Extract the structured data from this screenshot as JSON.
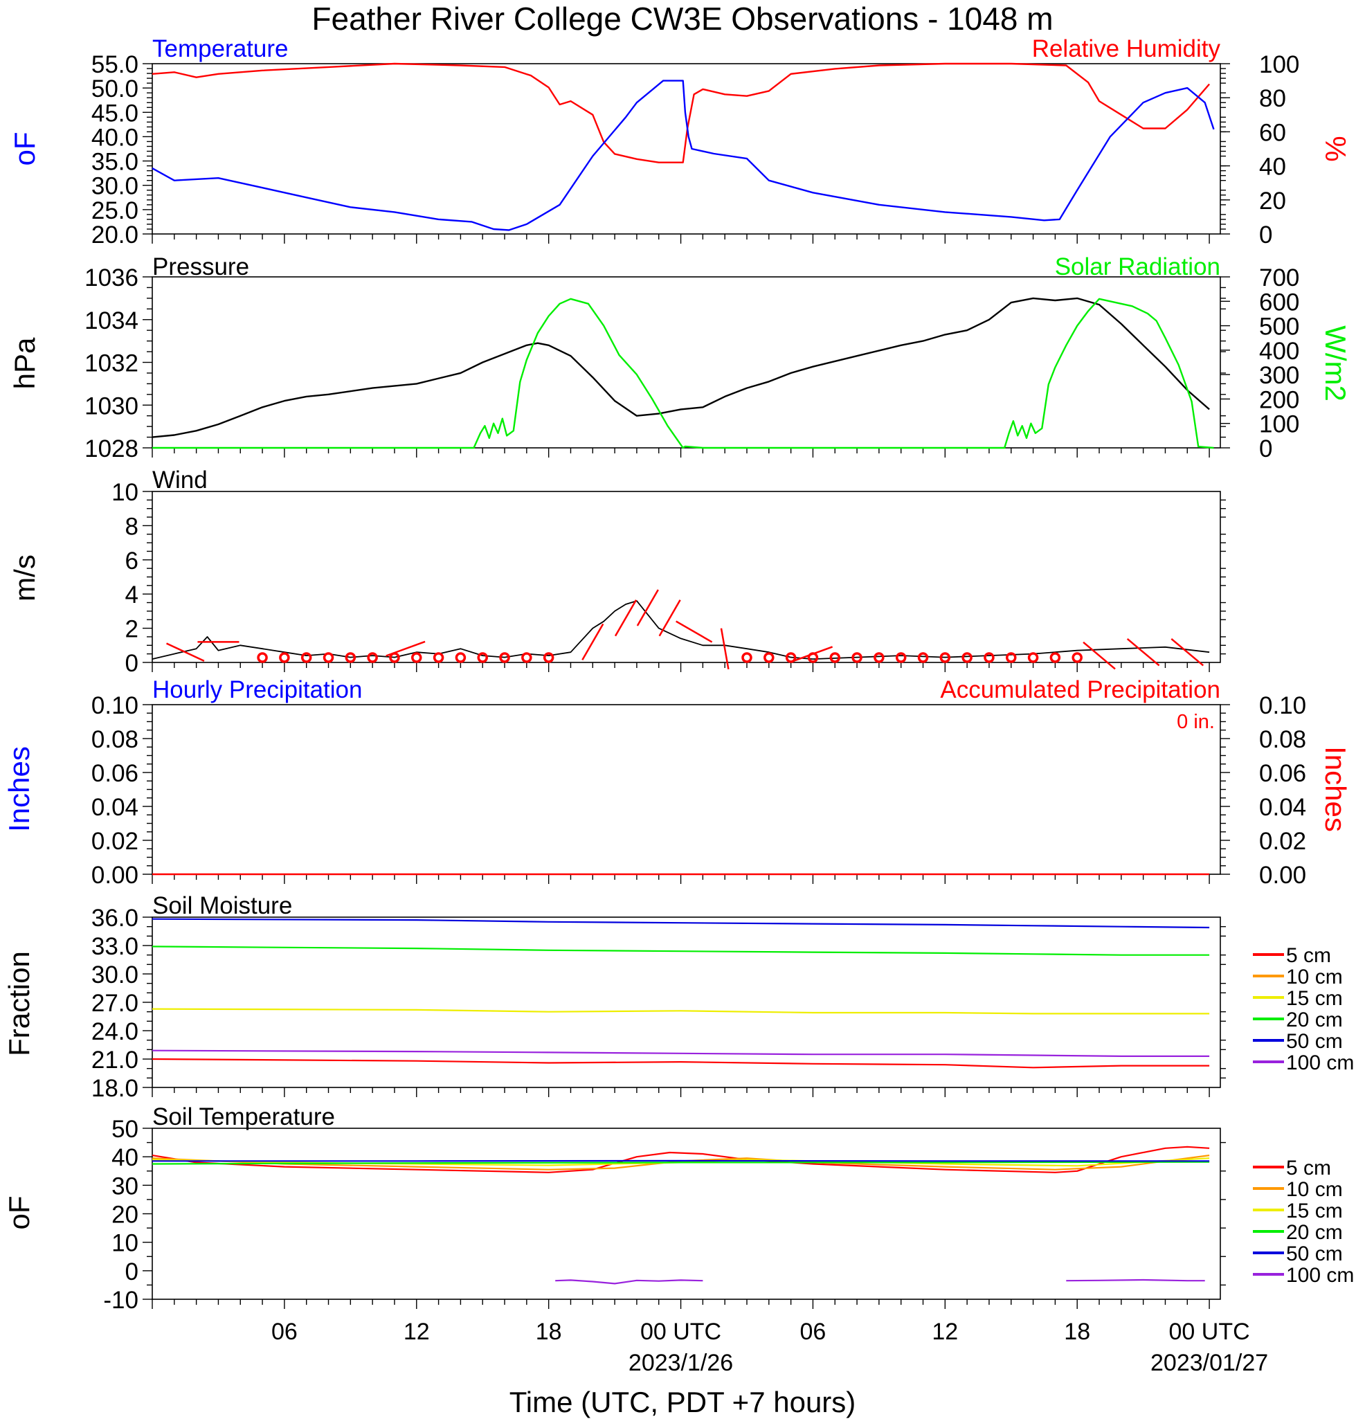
{
  "page": {
    "title": "Feather River College CW3E Observations - 1048 m",
    "x_axis_title": "Time (UTC, PDT +7 hours)",
    "x_ticks": [
      "06",
      "12",
      "18",
      "00 UTC",
      "06",
      "12",
      "18",
      "00 UTC"
    ],
    "date_labels": [
      "2023/1/26",
      "2023/01/27"
    ]
  },
  "colors": {
    "temperature": "#0000ff",
    "humidity": "#ff0000",
    "pressure": "#000000",
    "solar": "#00ee00",
    "wind_barb": "#ff0000",
    "cm5": "#ff0000",
    "cm10": "#ff9900",
    "cm15": "#eeee00",
    "cm20": "#00ee00",
    "cm50": "#0000dd",
    "cm100": "#9922dd"
  },
  "chart_data": [
    {
      "panel": "temp_rh",
      "type": "line",
      "left_label": "Temperature",
      "right_label": "Relative Humidity",
      "left_unit": "oF",
      "right_unit": "%",
      "left_ylim": [
        20,
        55
      ],
      "right_ylim": [
        0,
        100
      ],
      "left_ticks": [
        "55.0",
        "50.0",
        "45.0",
        "40.0",
        "35.0",
        "30.0",
        "25.0",
        "20.0"
      ],
      "right_ticks": [
        "100",
        "80",
        "60",
        "40",
        "20",
        "0"
      ],
      "series": [
        {
          "name": "Temperature",
          "axis": "left",
          "color_key": "temperature",
          "x": [
            0,
            1,
            3,
            5,
            7,
            9,
            11,
            13,
            14.5,
            15.5,
            16.2,
            17,
            18.5,
            20,
            21.5,
            22,
            23.2,
            24.1,
            24.2,
            24.35,
            24.5,
            25.5,
            27,
            28,
            30,
            33,
            36,
            39,
            40.5,
            41.2,
            42,
            43.5,
            45,
            46,
            47,
            47.8,
            48.2
          ],
          "y": [
            33.5,
            31,
            31.5,
            29.5,
            27.5,
            25.5,
            24.5,
            23,
            22.5,
            21,
            20.8,
            22,
            26,
            36,
            44,
            47,
            51.5,
            51.5,
            45,
            40,
            37.5,
            36.5,
            35.5,
            31,
            28.5,
            26,
            24.5,
            23.5,
            22.8,
            23,
            29,
            40,
            47,
            49,
            50,
            47,
            41.5
          ]
        },
        {
          "name": "Relative Humidity",
          "axis": "right",
          "color_key": "humidity",
          "x": [
            0,
            1,
            2,
            3,
            5,
            8,
            11,
            14,
            16,
            17.2,
            18,
            18.5,
            19,
            20,
            20.5,
            21,
            22,
            23,
            24.1,
            24.3,
            24.6,
            25,
            26,
            27,
            28,
            29,
            31,
            33,
            36,
            39,
            41.5,
            42.5,
            43,
            44,
            45,
            46,
            47,
            48
          ],
          "y": [
            94,
            95,
            92,
            94,
            96,
            98,
            100,
            99,
            98,
            93,
            86,
            76,
            78,
            70,
            54,
            47,
            44,
            42,
            42,
            62,
            82,
            85,
            82,
            81,
            84,
            94,
            97,
            99,
            100,
            100,
            99,
            89,
            78,
            70,
            62,
            62,
            73,
            88
          ]
        },
        {
          "name": "Pressure",
          "axis": "left2",
          "color_key": "pressure",
          "x": [
            0,
            1,
            2,
            3,
            4,
            5,
            6,
            7,
            8,
            10,
            12,
            14,
            15,
            16,
            17,
            17.5,
            18,
            19,
            20,
            21,
            22,
            23,
            24,
            25,
            26,
            27,
            28,
            29,
            30,
            32,
            34,
            35,
            36,
            37,
            38,
            39,
            40,
            41,
            42,
            43,
            44,
            45,
            46,
            47,
            48
          ],
          "y": [
            1028.5,
            1028.6,
            1028.8,
            1029.1,
            1029.5,
            1029.9,
            1030.2,
            1030.4,
            1030.5,
            1030.8,
            1031.0,
            1031.5,
            1032.0,
            1032.4,
            1032.8,
            1032.9,
            1032.8,
            1032.3,
            1031.3,
            1030.2,
            1029.5,
            1029.6,
            1029.8,
            1029.9,
            1030.4,
            1030.8,
            1031.1,
            1031.5,
            1031.8,
            1032.3,
            1032.8,
            1033.0,
            1033.3,
            1033.5,
            1034.0,
            1034.8,
            1035.0,
            1034.9,
            1035.0,
            1034.7,
            1033.8,
            1032.8,
            1031.8,
            1030.7,
            1029.8
          ]
        },
        {
          "name": "Solar Radiation",
          "axis": "right2",
          "color_key": "solar",
          "x": [
            0,
            14.6,
            14.9,
            15.1,
            15.3,
            15.5,
            15.7,
            15.9,
            16.1,
            16.4,
            16.7,
            17,
            17.5,
            18,
            18.5,
            19,
            19.8,
            20.5,
            21.2,
            22,
            22.7,
            23.4,
            24.1,
            24.2,
            25,
            38.7,
            38.9,
            39.1,
            39.3,
            39.5,
            39.7,
            39.9,
            40.1,
            40.4,
            40.7,
            41,
            41.5,
            42,
            42.5,
            43,
            43.5,
            44.5,
            45.2,
            45.6,
            46,
            46.6,
            47.2,
            47.5,
            48.2
          ],
          "y": [
            0,
            0,
            60,
            90,
            40,
            100,
            60,
            120,
            50,
            70,
            270,
            360,
            470,
            540,
            590,
            610,
            590,
            500,
            380,
            300,
            200,
            90,
            0,
            6,
            0,
            0,
            60,
            110,
            50,
            90,
            40,
            100,
            60,
            80,
            260,
            330,
            420,
            500,
            560,
            610,
            600,
            580,
            550,
            520,
            450,
            340,
            190,
            5,
            0
          ]
        }
      ]
    },
    {
      "panel": "pressure_solar",
      "type": "line",
      "left_label": "Pressure",
      "right_label": "Solar Radiation",
      "left_unit": "hPa",
      "right_unit": "W/m2",
      "left_ylim": [
        1028,
        1036
      ],
      "right_ylim": [
        0,
        700
      ],
      "left_ticks": [
        "1036",
        "1034",
        "1032",
        "1030",
        "1028"
      ],
      "right_ticks": [
        "700",
        "600",
        "500",
        "400",
        "300",
        "200",
        "100",
        "0"
      ]
    },
    {
      "panel": "wind",
      "type": "line",
      "left_label": "Wind",
      "left_unit": "m/s",
      "ylim": [
        0,
        10
      ],
      "left_ticks": [
        "10",
        "8",
        "6",
        "4",
        "2",
        "0"
      ],
      "x": [
        0,
        1,
        2,
        2.5,
        3,
        4,
        5,
        6,
        7,
        8,
        9,
        10,
        11,
        12,
        13,
        14,
        15,
        16,
        17,
        18,
        19,
        20,
        20.5,
        21,
        21.5,
        22,
        22.5,
        23,
        24,
        25,
        26,
        27,
        28,
        29,
        30,
        32,
        34,
        36,
        38,
        40,
        42,
        44,
        46,
        48
      ],
      "y": [
        0.2,
        0.5,
        0.8,
        1.5,
        0.7,
        1.0,
        0.8,
        0.6,
        0.4,
        0.5,
        0.3,
        0.4,
        0.3,
        0.6,
        0.5,
        0.8,
        0.4,
        0.3,
        0.5,
        0.4,
        0.6,
        2.0,
        2.4,
        3.0,
        3.4,
        3.6,
        2.8,
        2.0,
        1.4,
        1.0,
        1.0,
        0.8,
        0.6,
        0.3,
        0.2,
        0.3,
        0.4,
        0.3,
        0.4,
        0.5,
        0.7,
        0.8,
        0.9,
        0.6
      ],
      "calm_x": [
        5,
        6,
        7,
        8,
        9,
        10,
        11,
        12,
        13,
        14,
        15,
        16,
        17,
        18,
        27,
        28,
        29,
        30,
        31,
        32,
        33,
        34,
        35,
        36,
        37,
        38,
        39,
        40,
        41,
        42
      ]
    },
    {
      "panel": "precip",
      "type": "line",
      "left_label": "Hourly Precipitation",
      "right_label": "Accumulated Precipitation",
      "left_unit": "Inches",
      "right_unit": "Inches",
      "total_label": "0 in.",
      "ylim": [
        0,
        0.1
      ],
      "left_ticks": [
        "0.10",
        "0.08",
        "0.06",
        "0.04",
        "0.02",
        "0.00"
      ],
      "right_ticks": [
        "0.10",
        "0.08",
        "0.06",
        "0.04",
        "0.02",
        "0.00"
      ],
      "series": [
        {
          "x": [
            0,
            48
          ],
          "y": [
            0,
            0
          ]
        }
      ]
    },
    {
      "panel": "soil_moisture",
      "type": "line",
      "left_label": "Soil Moisture",
      "left_unit": "Fraction",
      "ylim": [
        18,
        36
      ],
      "left_ticks": [
        "36.0",
        "33.0",
        "30.0",
        "27.0",
        "24.0",
        "21.0",
        "18.0"
      ],
      "legend": [
        "5 cm",
        "10 cm",
        "15 cm",
        "20 cm",
        "50 cm",
        "100 cm"
      ],
      "series": [
        {
          "name": "5 cm",
          "color_key": "cm5",
          "x": [
            0,
            12,
            18,
            24,
            30,
            36,
            40,
            44,
            48
          ],
          "y": [
            21.0,
            20.8,
            20.6,
            20.7,
            20.5,
            20.4,
            20.1,
            20.3,
            20.3
          ]
        },
        {
          "name": "15 cm",
          "color_key": "cm15",
          "x": [
            0,
            12,
            18,
            24,
            30,
            36,
            40,
            44,
            48
          ],
          "y": [
            26.3,
            26.2,
            26.0,
            26.1,
            25.9,
            25.9,
            25.8,
            25.8,
            25.8
          ]
        },
        {
          "name": "20 cm",
          "color_key": "cm20",
          "x": [
            0,
            12,
            18,
            24,
            30,
            36,
            40,
            44,
            48
          ],
          "y": [
            32.9,
            32.7,
            32.5,
            32.4,
            32.3,
            32.2,
            32.1,
            32.0,
            32.0
          ]
        },
        {
          "name": "50 cm",
          "color_key": "cm50",
          "x": [
            0,
            12,
            18,
            24,
            30,
            36,
            40,
            44,
            48
          ],
          "y": [
            35.8,
            35.7,
            35.5,
            35.4,
            35.3,
            35.2,
            35.1,
            35.0,
            34.9
          ]
        },
        {
          "name": "100 cm",
          "color_key": "cm100",
          "x": [
            0,
            12,
            18,
            24,
            30,
            36,
            40,
            44,
            48
          ],
          "y": [
            21.9,
            21.8,
            21.7,
            21.6,
            21.5,
            21.5,
            21.4,
            21.3,
            21.3
          ]
        }
      ]
    },
    {
      "panel": "soil_temp",
      "type": "line",
      "left_label": "Soil Temperature",
      "left_unit": "oF",
      "ylim": [
        -10,
        50
      ],
      "left_ticks": [
        "50",
        "40",
        "30",
        "20",
        "10",
        "0",
        "-10"
      ],
      "legend": [
        "5 cm",
        "10 cm",
        "15 cm",
        "20 cm",
        "50 cm",
        "100 cm"
      ],
      "series": [
        {
          "name": "5 cm",
          "color_key": "cm5",
          "x": [
            0,
            2,
            6,
            12,
            18,
            20,
            22,
            23.5,
            25,
            27,
            30,
            36,
            41,
            42,
            44,
            46,
            47,
            48
          ],
          "y": [
            40.5,
            38,
            36.5,
            35.5,
            34.5,
            35.5,
            40,
            41.5,
            41,
            39,
            37.5,
            35.5,
            34.5,
            35,
            40,
            43,
            43.5,
            43
          ]
        },
        {
          "name": "10 cm",
          "color_key": "cm10",
          "x": [
            0,
            6,
            12,
            18,
            21,
            24,
            27,
            30,
            36,
            41,
            44,
            48
          ],
          "y": [
            39.5,
            37.5,
            36.5,
            35.5,
            36,
            38.5,
            39.5,
            38,
            36.5,
            35.5,
            36.5,
            40.5
          ]
        },
        {
          "name": "15 cm",
          "color_key": "cm15",
          "x": [
            0,
            6,
            12,
            18,
            24,
            27,
            30,
            36,
            42,
            48
          ],
          "y": [
            39,
            38,
            37.5,
            37,
            38,
            39,
            38.5,
            37.5,
            36.8,
            39.5
          ]
        },
        {
          "name": "20 cm",
          "color_key": "cm20",
          "x": [
            0,
            12,
            24,
            36,
            48
          ],
          "y": [
            37.5,
            37.8,
            38,
            38,
            38.2
          ]
        },
        {
          "name": "50 cm",
          "color_key": "cm50",
          "x": [
            0,
            12,
            24,
            36,
            48
          ],
          "y": [
            38.5,
            38.5,
            38.6,
            38.5,
            38.5
          ]
        },
        {
          "name": "100 cm",
          "color_key": "cm100",
          "x": [
            18.3,
            19,
            20,
            21,
            22,
            23,
            24,
            25
          ],
          "y": [
            -3.5,
            -3.3,
            -3.8,
            -4.5,
            -3.4,
            -3.6,
            -3.3,
            -3.5
          ]
        },
        {
          "name": "100 cm b",
          "color_key": "cm100",
          "x": [
            41.5,
            43,
            45,
            47,
            47.8
          ],
          "y": [
            -3.5,
            -3.4,
            -3.2,
            -3.5,
            -3.5
          ]
        }
      ]
    }
  ]
}
